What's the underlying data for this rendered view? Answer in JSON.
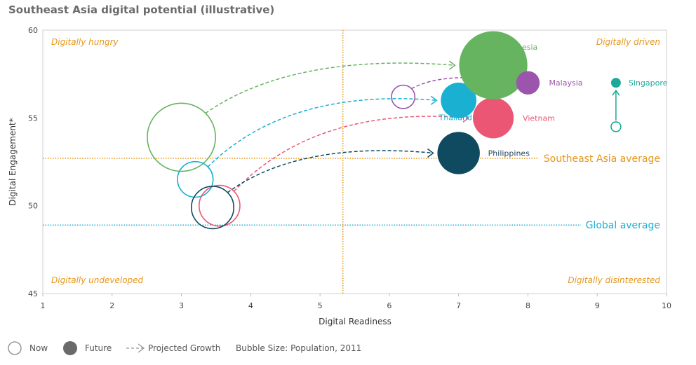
{
  "chart_data": {
    "type": "scatter",
    "title": "Southeast Asia digital potential (illustrative)",
    "xlabel": "Digital Readiness",
    "ylabel": "Digital Engagement*",
    "xlim": [
      1,
      10
    ],
    "ylim": [
      45,
      60
    ],
    "xticks": [
      "1",
      "2",
      "3",
      "4",
      "5",
      "6",
      "7",
      "8",
      "9",
      "10"
    ],
    "yticks": [
      "45",
      "50",
      "55",
      "60"
    ],
    "grid": false,
    "quadrants": {
      "top_left": "Digitally hungry",
      "top_right": "Digitally driven",
      "bottom_left": "Digitally undeveloped",
      "bottom_right": "Digitally disinterested"
    },
    "reference_lines": [
      {
        "label": "Southeast Asia average",
        "axis": "y",
        "value": 52.7,
        "color": "#e5971c"
      },
      {
        "label": "Global average",
        "axis": "y",
        "value": 48.9,
        "color": "#1ab0d2"
      },
      {
        "axis": "x",
        "value": 5.33,
        "color": "#e5971c"
      }
    ],
    "series": [
      {
        "name": "Indonesia",
        "color": "#66b360",
        "now": {
          "x": 3.0,
          "y": 53.9
        },
        "future": {
          "x": 7.5,
          "y": 58.0
        },
        "size": 246
      },
      {
        "name": "Malaysia",
        "color": "#9b55ad",
        "now": {
          "x": 6.2,
          "y": 56.2
        },
        "future": {
          "x": 8.0,
          "y": 57.0
        },
        "size": 29
      },
      {
        "name": "Singapore",
        "color": "#1aa89a",
        "now": {
          "x": 9.27,
          "y": 54.5
        },
        "future": {
          "x": 9.27,
          "y": 57.0
        },
        "size": 5
      },
      {
        "name": "Thailand",
        "color": "#1ab0d2",
        "now": {
          "x": 3.2,
          "y": 51.5
        },
        "future": {
          "x": 7.0,
          "y": 56.0
        },
        "size": 67
      },
      {
        "name": "Vietnam",
        "color": "#ec5675",
        "now": {
          "x": 3.55,
          "y": 50.0
        },
        "future": {
          "x": 7.5,
          "y": 55.0
        },
        "size": 88
      },
      {
        "name": "Philippines",
        "color": "#0f4a61",
        "now": {
          "x": 3.45,
          "y": 49.9
        },
        "future": {
          "x": 7.0,
          "y": 53.0
        },
        "size": 95
      }
    ],
    "legend": {
      "now": "Now",
      "future": "Future",
      "growth": "Projected Growth",
      "bubble_size": "Bubble Size: Population, 2011"
    }
  }
}
